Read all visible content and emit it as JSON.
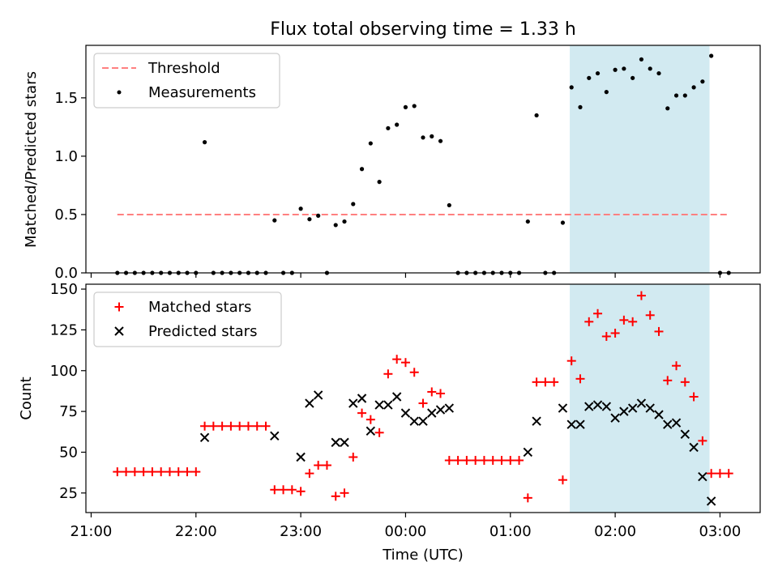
{
  "figure": {
    "title": "Flux total observing time = 1.33 h"
  },
  "x_axis": {
    "label": "Time (UTC)",
    "ticks": [
      {
        "t": 0,
        "label": "21:00"
      },
      {
        "t": 60,
        "label": "22:00"
      },
      {
        "t": 120,
        "label": "23:00"
      },
      {
        "t": 180,
        "label": "00:00"
      },
      {
        "t": 240,
        "label": "01:00"
      },
      {
        "t": 300,
        "label": "02:00"
      },
      {
        "t": 360,
        "label": "03:00"
      }
    ]
  },
  "highlight": {
    "x_start": 274,
    "x_end": 354,
    "color": "#add8e6"
  },
  "chart_data": [
    {
      "type": "scatter",
      "ylabel": "Matched/Predicted stars",
      "xlim": [
        -3,
        383
      ],
      "ylim": [
        0,
        1.95
      ],
      "yticks": [
        {
          "v": 0,
          "label": "0.0"
        },
        {
          "v": 0.5,
          "label": "0.5"
        },
        {
          "v": 1.0,
          "label": "1.0"
        },
        {
          "v": 1.5,
          "label": "1.5"
        }
      ],
      "threshold": {
        "name": "Threshold",
        "value": 0.5,
        "x_start": 15,
        "x_end": 365,
        "color": "#ff8080"
      },
      "series": [
        {
          "name": "Measurements",
          "color": "#000000",
          "points": [
            [
              15,
              0
            ],
            [
              20,
              0
            ],
            [
              25,
              0
            ],
            [
              30,
              0
            ],
            [
              35,
              0
            ],
            [
              40,
              0
            ],
            [
              45,
              0
            ],
            [
              50,
              0
            ],
            [
              55,
              0
            ],
            [
              60,
              0
            ],
            [
              65,
              1.12
            ],
            [
              70,
              0
            ],
            [
              75,
              0
            ],
            [
              80,
              0
            ],
            [
              85,
              0
            ],
            [
              90,
              0
            ],
            [
              95,
              0
            ],
            [
              100,
              0
            ],
            [
              105,
              0.45
            ],
            [
              110,
              0
            ],
            [
              115,
              0
            ],
            [
              120,
              0.55
            ],
            [
              125,
              0.46
            ],
            [
              130,
              0.49
            ],
            [
              135,
              0
            ],
            [
              140,
              0.41
            ],
            [
              145,
              0.44
            ],
            [
              150,
              0.59
            ],
            [
              155,
              0.89
            ],
            [
              160,
              1.11
            ],
            [
              165,
              0.78
            ],
            [
              170,
              1.24
            ],
            [
              175,
              1.27
            ],
            [
              180,
              1.42
            ],
            [
              185,
              1.43
            ],
            [
              190,
              1.16
            ],
            [
              195,
              1.17
            ],
            [
              200,
              1.13
            ],
            [
              205,
              0.58
            ],
            [
              210,
              0
            ],
            [
              215,
              0
            ],
            [
              220,
              0
            ],
            [
              225,
              0
            ],
            [
              230,
              0
            ],
            [
              235,
              0
            ],
            [
              240,
              0
            ],
            [
              245,
              0
            ],
            [
              250,
              0.44
            ],
            [
              255,
              1.35
            ],
            [
              260,
              0
            ],
            [
              265,
              0
            ],
            [
              270,
              0.43
            ],
            [
              275,
              1.59
            ],
            [
              280,
              1.42
            ],
            [
              285,
              1.67
            ],
            [
              290,
              1.71
            ],
            [
              295,
              1.55
            ],
            [
              300,
              1.74
            ],
            [
              305,
              1.75
            ],
            [
              310,
              1.67
            ],
            [
              315,
              1.83
            ],
            [
              320,
              1.75
            ],
            [
              325,
              1.71
            ],
            [
              330,
              1.41
            ],
            [
              335,
              1.52
            ],
            [
              340,
              1.52
            ],
            [
              345,
              1.59
            ],
            [
              350,
              1.64
            ],
            [
              355,
              1.86
            ],
            [
              360,
              0
            ],
            [
              365,
              0
            ]
          ]
        }
      ]
    },
    {
      "type": "scatter",
      "ylabel": "Count",
      "xlim": [
        -3,
        383
      ],
      "ylim": [
        13,
        153
      ],
      "yticks": [
        {
          "v": 25,
          "label": "25"
        },
        {
          "v": 50,
          "label": "50"
        },
        {
          "v": 75,
          "label": "75"
        },
        {
          "v": 100,
          "label": "100"
        },
        {
          "v": 125,
          "label": "125"
        },
        {
          "v": 150,
          "label": "150"
        }
      ],
      "series": [
        {
          "name": "Matched stars",
          "marker": "plus",
          "color": "#ff0000",
          "points": [
            [
              15,
              38
            ],
            [
              20,
              38
            ],
            [
              25,
              38
            ],
            [
              30,
              38
            ],
            [
              35,
              38
            ],
            [
              40,
              38
            ],
            [
              45,
              38
            ],
            [
              50,
              38
            ],
            [
              55,
              38
            ],
            [
              60,
              38
            ],
            [
              65,
              66
            ],
            [
              70,
              66
            ],
            [
              75,
              66
            ],
            [
              80,
              66
            ],
            [
              85,
              66
            ],
            [
              90,
              66
            ],
            [
              95,
              66
            ],
            [
              100,
              66
            ],
            [
              105,
              27
            ],
            [
              110,
              27
            ],
            [
              115,
              27
            ],
            [
              120,
              26
            ],
            [
              125,
              37
            ],
            [
              130,
              42
            ],
            [
              135,
              42
            ],
            [
              140,
              23
            ],
            [
              145,
              25
            ],
            [
              150,
              47
            ],
            [
              155,
              74
            ],
            [
              160,
              70
            ],
            [
              165,
              62
            ],
            [
              170,
              98
            ],
            [
              175,
              107
            ],
            [
              180,
              105
            ],
            [
              185,
              99
            ],
            [
              190,
              80
            ],
            [
              195,
              87
            ],
            [
              200,
              86
            ],
            [
              205,
              45
            ],
            [
              210,
              45
            ],
            [
              215,
              45
            ],
            [
              220,
              45
            ],
            [
              225,
              45
            ],
            [
              230,
              45
            ],
            [
              235,
              45
            ],
            [
              240,
              45
            ],
            [
              245,
              45
            ],
            [
              250,
              22
            ],
            [
              255,
              93
            ],
            [
              260,
              93
            ],
            [
              265,
              93
            ],
            [
              270,
              33
            ],
            [
              275,
              106
            ],
            [
              280,
              95
            ],
            [
              285,
              130
            ],
            [
              290,
              135
            ],
            [
              295,
              121
            ],
            [
              300,
              123
            ],
            [
              305,
              131
            ],
            [
              310,
              130
            ],
            [
              315,
              146
            ],
            [
              320,
              134
            ],
            [
              325,
              124
            ],
            [
              330,
              94
            ],
            [
              335,
              103
            ],
            [
              340,
              93
            ],
            [
              345,
              84
            ],
            [
              350,
              57
            ],
            [
              355,
              37
            ],
            [
              360,
              37
            ],
            [
              365,
              37
            ]
          ]
        },
        {
          "name": "Predicted stars",
          "marker": "x",
          "color": "#000000",
          "points": [
            [
              65,
              59
            ],
            [
              105,
              60
            ],
            [
              120,
              47
            ],
            [
              125,
              80
            ],
            [
              130,
              85
            ],
            [
              140,
              56
            ],
            [
              145,
              56
            ],
            [
              150,
              80
            ],
            [
              155,
              83
            ],
            [
              160,
              63
            ],
            [
              165,
              79
            ],
            [
              170,
              79
            ],
            [
              175,
              84
            ],
            [
              180,
              74
            ],
            [
              185,
              69
            ],
            [
              190,
              69
            ],
            [
              195,
              74
            ],
            [
              200,
              76
            ],
            [
              205,
              77
            ],
            [
              250,
              50
            ],
            [
              255,
              69
            ],
            [
              270,
              77
            ],
            [
              275,
              67
            ],
            [
              280,
              67
            ],
            [
              285,
              78
            ],
            [
              290,
              79
            ],
            [
              295,
              78
            ],
            [
              300,
              71
            ],
            [
              305,
              75
            ],
            [
              310,
              77
            ],
            [
              315,
              80
            ],
            [
              320,
              77
            ],
            [
              325,
              73
            ],
            [
              330,
              67
            ],
            [
              335,
              68
            ],
            [
              340,
              61
            ],
            [
              345,
              53
            ],
            [
              350,
              35
            ],
            [
              355,
              20
            ]
          ]
        }
      ]
    }
  ]
}
